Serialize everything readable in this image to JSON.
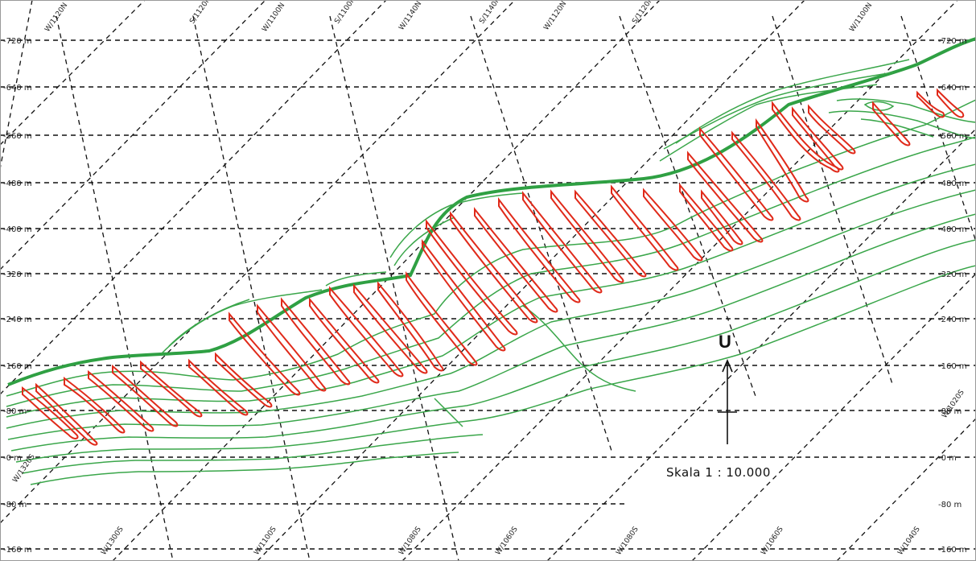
{
  "elevation_labels": {
    "left": [
      "-720 m",
      "-640 m",
      "-560 m",
      "-480 m",
      "-400 m",
      "-320 m",
      "-240 m",
      "-160 m",
      "-80 m",
      "-0 m",
      "-80 m",
      "-160 m"
    ],
    "right": [
      "-720 m",
      "-640 m",
      "-560 m",
      "-480 m",
      "-400 m",
      "-320 m",
      "-240 m",
      "-160 m",
      "-80 m",
      "-0 m",
      "-80 m",
      "-160 m"
    ]
  },
  "grid_labels_top": [
    "W/1120N",
    "S/1120N",
    "W/1100N",
    "S/1100N",
    "W/1140N",
    "S/1140N",
    "W/1120N",
    "S/1120N",
    "W/1100N"
  ],
  "grid_labels_bottom": [
    "W/1320S",
    "W/1300S",
    "W/1100S",
    "W/1080S",
    "W/1060S",
    "W/1080S",
    "W/1060S",
    "W/1040S",
    "W/1020S"
  ],
  "north_arrow": {
    "label": "U"
  },
  "scale": {
    "label": "Skala  1 : 10.000"
  },
  "colors": {
    "contours": "#3aa64a",
    "ore_bodies": "#e02a1a",
    "grid": "#111111"
  }
}
